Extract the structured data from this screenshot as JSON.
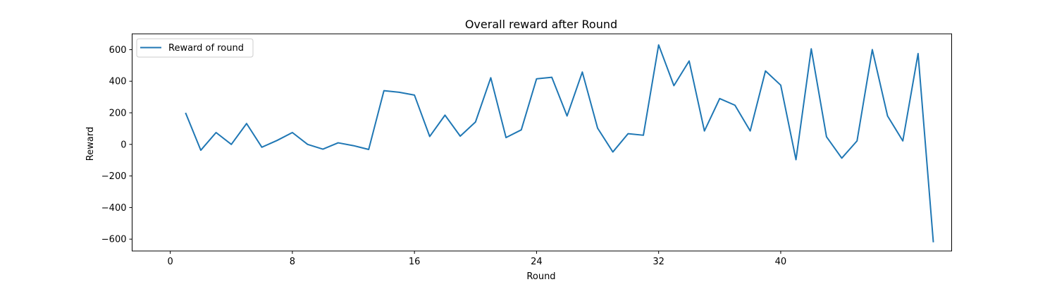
{
  "chart_data": {
    "type": "line",
    "title": "Overall reward after Round",
    "xlabel": "Round",
    "ylabel": "Reward",
    "xlim": [
      -2.5,
      51.2
    ],
    "ylim": [
      -675,
      700
    ],
    "x_ticks": [
      0,
      8,
      16,
      24,
      32,
      40
    ],
    "x_tick_labels": [
      "0",
      "8",
      "16",
      "24",
      "32",
      "40"
    ],
    "y_ticks": [
      -600,
      -400,
      -200,
      0,
      200,
      400,
      600
    ],
    "y_tick_labels": [
      "−600",
      "−400",
      "−200",
      "0",
      "200",
      "400",
      "600"
    ],
    "legend_position": "upper-left",
    "series": [
      {
        "name": "Reward of round",
        "color": "#1f77b4",
        "x": [
          1,
          2,
          3,
          4,
          5,
          6,
          7,
          8,
          9,
          10,
          11,
          12,
          13,
          14,
          15,
          16,
          17,
          18,
          19,
          20,
          21,
          22,
          23,
          24,
          25,
          26,
          27,
          28,
          29,
          30,
          31,
          32,
          33,
          34,
          35,
          36,
          37,
          38,
          39,
          40,
          41,
          42,
          43,
          44,
          45,
          46,
          47,
          48,
          49,
          50
        ],
        "values": [
          200,
          -37,
          75,
          0,
          132,
          -18,
          25,
          75,
          0,
          -30,
          10,
          -8,
          -32,
          340,
          330,
          312,
          50,
          185,
          52,
          142,
          422,
          43,
          92,
          415,
          425,
          180,
          458,
          103,
          -48,
          68,
          58,
          630,
          372,
          528,
          85,
          290,
          248,
          85,
          465,
          375,
          -97,
          605,
          48,
          -87,
          22,
          600,
          180,
          22,
          575,
          -620
        ]
      }
    ]
  }
}
